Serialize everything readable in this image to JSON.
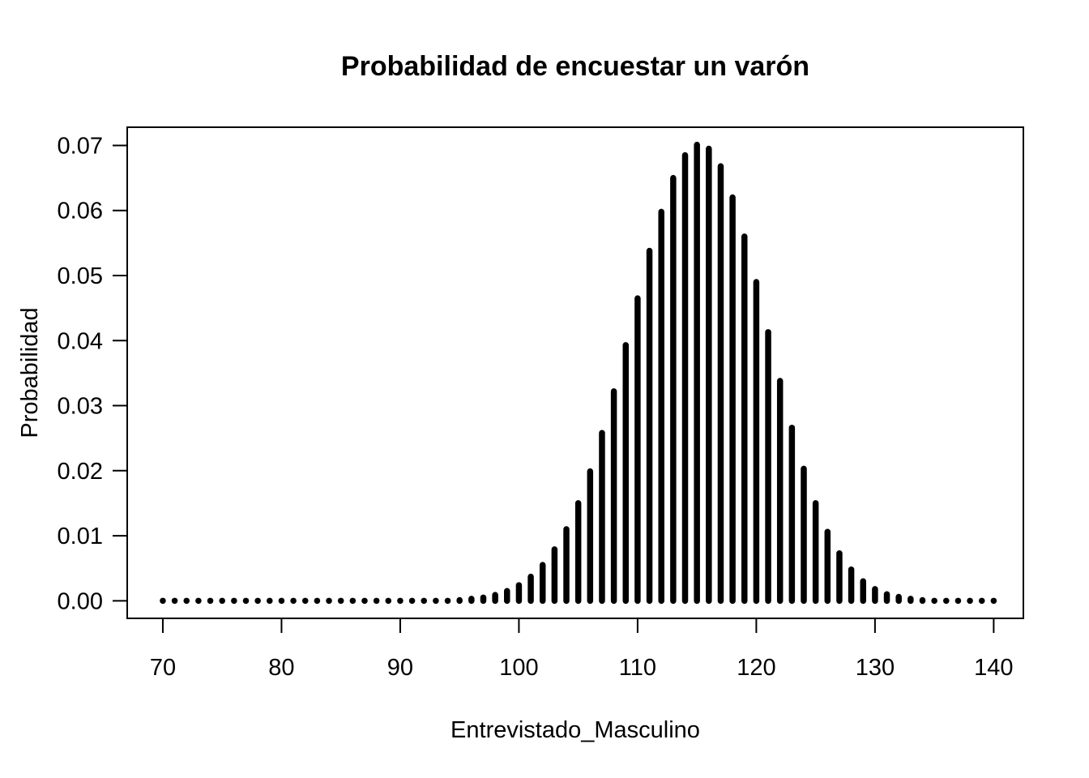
{
  "chart_data": {
    "type": "bar",
    "title": "Probabilidad de encuestar un varón",
    "xlabel": "Entrevistado_Masculino",
    "ylabel": "Probabilidad",
    "xlim": [
      67,
      142.5
    ],
    "ylim": [
      -0.0027,
      0.0728
    ],
    "x_ticks": [
      70,
      80,
      90,
      100,
      110,
      120,
      130,
      140
    ],
    "x_tick_labels": [
      "70",
      "80",
      "90",
      "100",
      "110",
      "120",
      "130",
      "140"
    ],
    "y_ticks": [
      0.0,
      0.01,
      0.02,
      0.03,
      0.04,
      0.05,
      0.06,
      0.07
    ],
    "y_tick_labels": [
      "0.00",
      "0.01",
      "0.02",
      "0.03",
      "0.04",
      "0.05",
      "0.06",
      "0.07"
    ],
    "grid": false,
    "legend": "none",
    "series": [
      {
        "color": "#000000",
        "x": [
          70,
          71,
          72,
          73,
          74,
          75,
          76,
          77,
          78,
          79,
          80,
          81,
          82,
          83,
          84,
          85,
          86,
          87,
          88,
          89,
          90,
          91,
          92,
          93,
          94,
          95,
          96,
          97,
          98,
          99,
          100,
          101,
          102,
          103,
          104,
          105,
          106,
          107,
          108,
          109,
          110,
          111,
          112,
          113,
          114,
          115,
          116,
          117,
          118,
          119,
          120,
          121,
          122,
          123,
          124,
          125,
          126,
          127,
          128,
          129,
          130,
          131,
          132,
          133,
          134,
          135,
          136,
          137,
          138,
          139,
          140
        ],
        "values": [
          0,
          0,
          0,
          0,
          0,
          0,
          0,
          0,
          0,
          0,
          0,
          0,
          0,
          0,
          0,
          0,
          0,
          0,
          0,
          0,
          0,
          0,
          0,
          0,
          0,
          0.0001,
          0.0003,
          0.0005,
          0.0009,
          0.0015,
          0.0024,
          0.0037,
          0.0055,
          0.0079,
          0.011,
          0.015,
          0.0199,
          0.0258,
          0.0322,
          0.0393,
          0.0465,
          0.0538,
          0.0598,
          0.065,
          0.0685,
          0.0701,
          0.0695,
          0.0668,
          0.062,
          0.056,
          0.049,
          0.0413,
          0.0338,
          0.0266,
          0.0203,
          0.015,
          0.0106,
          0.0073,
          0.0048,
          0.003,
          0.0018,
          0.001,
          0.0006,
          0.0003,
          0.0001,
          0,
          0,
          0,
          0,
          0,
          0
        ]
      }
    ]
  }
}
